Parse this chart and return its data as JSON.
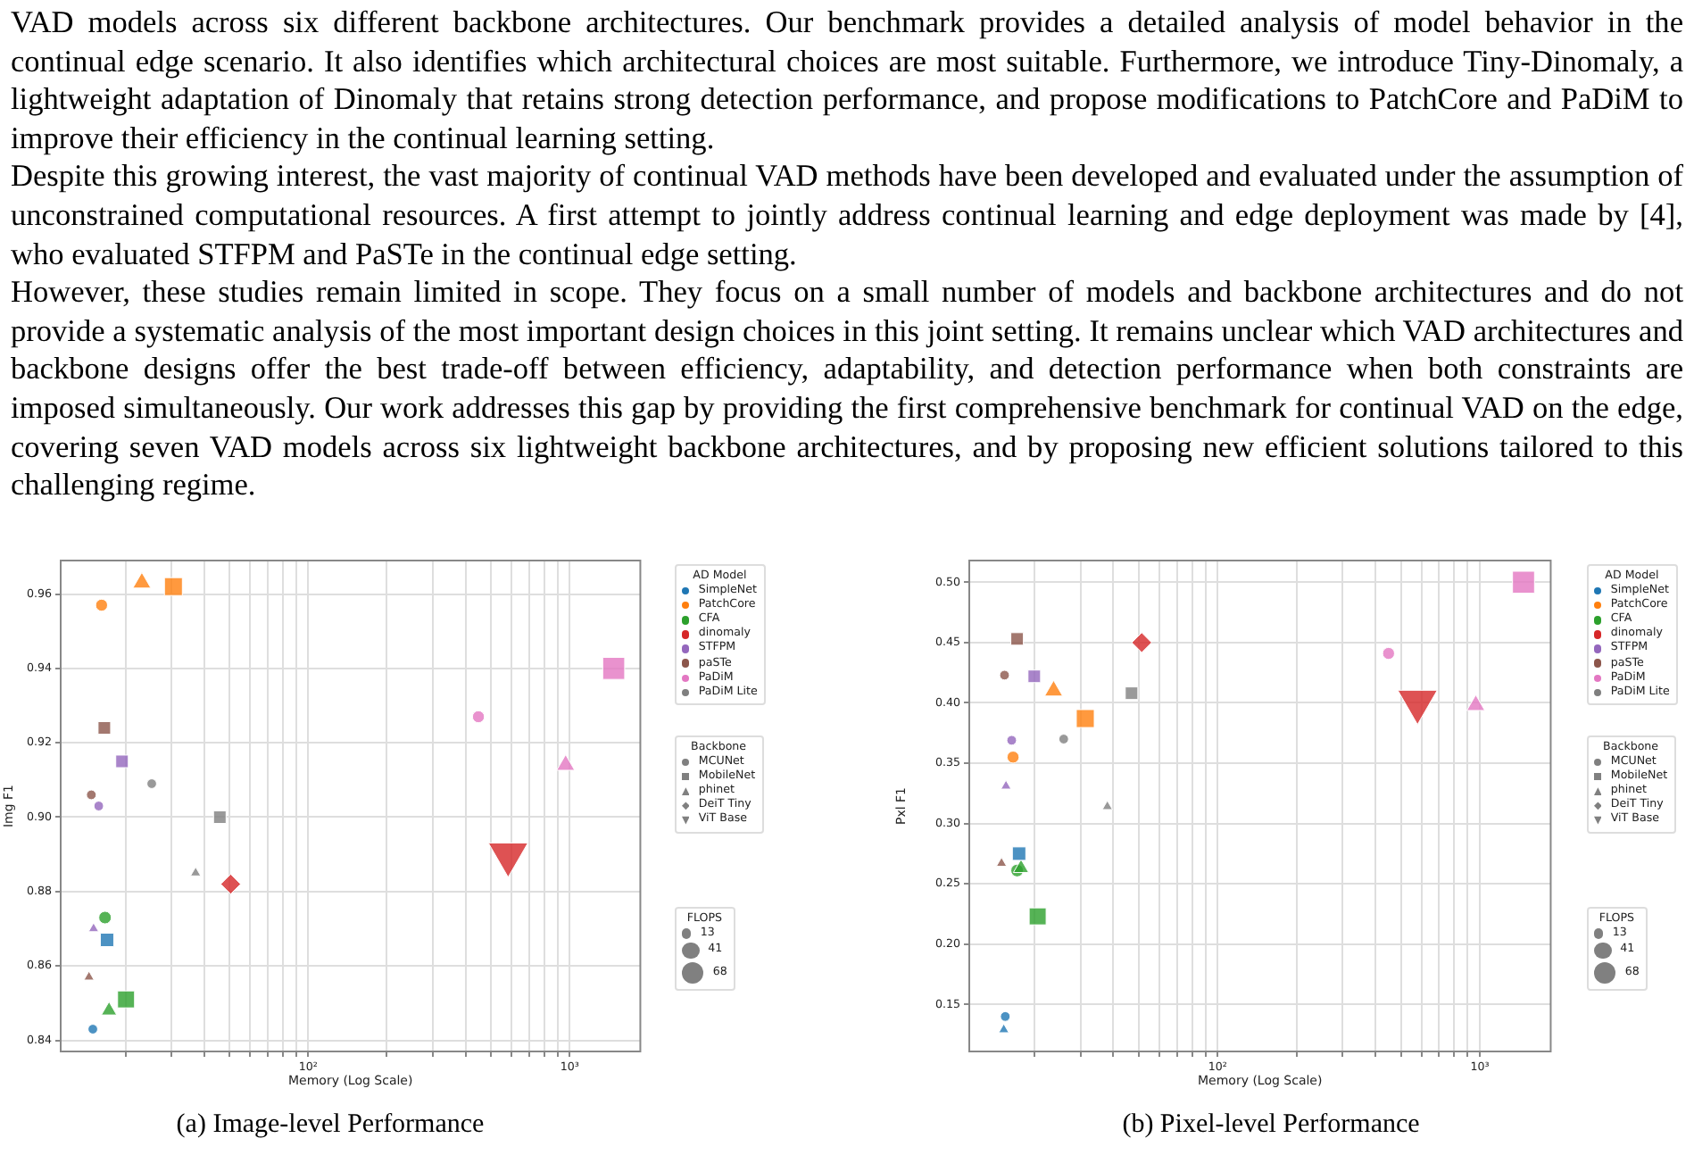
{
  "chart_data": [
    {
      "type": "bubble",
      "xlabel": "Memory (Log Scale)",
      "ylabel": "Img F1",
      "log": "x",
      "grid": true,
      "legend": "right",
      "legend_title": [
        "AD Model",
        "Backbone",
        "FLOPS"
      ],
      "size_legend": [
        13,
        41,
        68
      ],
      "xlim": [
        11.3,
        1865
      ],
      "xticks": [
        {
          "value": 20,
          "label": null
        },
        {
          "value": 30,
          "label": null
        },
        {
          "value": 40,
          "label": null
        },
        {
          "value": 50,
          "label": null
        },
        {
          "value": 60,
          "label": null
        },
        {
          "value": 70,
          "label": null
        },
        {
          "value": 80,
          "label": null
        },
        {
          "value": 90,
          "label": null
        },
        {
          "value": 100,
          "label": "10²"
        },
        {
          "value": 200,
          "label": null
        },
        {
          "value": 300,
          "label": null
        },
        {
          "value": 400,
          "label": null
        },
        {
          "value": 500,
          "label": null
        },
        {
          "value": 600,
          "label": null
        },
        {
          "value": 700,
          "label": null
        },
        {
          "value": 800,
          "label": null
        },
        {
          "value": 900,
          "label": null
        },
        {
          "value": 1000,
          "label": "10³"
        }
      ],
      "ylim": [
        0.837,
        0.969
      ],
      "yticks": [
        {
          "value": 0.84,
          "label": "0.84"
        },
        {
          "value": 0.86,
          "label": "0.86"
        },
        {
          "value": 0.88,
          "label": "0.88"
        },
        {
          "value": 0.9,
          "label": "0.90"
        },
        {
          "value": 0.92,
          "label": "0.92"
        },
        {
          "value": 0.94,
          "label": "0.94"
        },
        {
          "value": 0.96,
          "label": "0.96"
        }
      ],
      "annotations": [
        "VAD models across six different backbone architectures. Our benchmark provides a detailed analysis of model behavior in the continual edge scenario. It also identifies which architectural choices are most suitable. Furthermore, we introduce Tiny-Dinomaly, a lightweight adaptation of Dinomaly that retains strong detection performance, and propose modifications to PatchCore and PaDiM to improve their efficiency in the continual learning setting.",
        "Despite this growing interest, the vast majority of continual VAD methods have been developed and evaluated under the assumption of unconstrained computational resources. A first attempt to jointly address continual learning and edge deployment was made by [4], who evaluated STFPM and PaSTe in the continual edge setting.",
        "However, these studies remain limited in scope. They focus on a small number of models and backbone architectures and do not provide a systematic analysis of the most important design choices in this joint setting. It remains unclear which VAD architectures and backbone designs offer the best trade-off between efficiency, adaptability, and detection performance when both constraints are imposed simultaneously. Our work addresses this gap by providing the first comprehensive benchmark for continual VAD on the edge, covering seven VAD models across six lightweight backbone architectures, and by proposing new efficient solutions tailored to this challenging regime.",
        "(a) Image-level Performance"
      ],
      "series": [
        {
          "name": "SimpleNet",
          "color": "#1f77b4",
          "x": [
            15.0,
            17.0
          ],
          "values": [
            0.843,
            0.867
          ],
          "sizes": [
            13,
            32
          ],
          "marker": [
            "circle",
            "square"
          ]
        },
        {
          "name": "PatchCore",
          "color": "#ff7f0e",
          "x": [
            16.2,
            30.5,
            23.1
          ],
          "values": [
            0.957,
            0.962,
            0.963
          ],
          "sizes": [
            20,
            57,
            25
          ],
          "marker": [
            "circle",
            "square",
            "triangle"
          ]
        },
        {
          "name": "CFA",
          "color": "#2ca02c",
          "x": [
            16.7,
            20.1,
            17.3
          ],
          "values": [
            0.873,
            0.851,
            0.848
          ],
          "sizes": [
            22,
            51,
            18
          ],
          "marker": [
            "circle",
            "square",
            "triangle"
          ]
        },
        {
          "name": "dinomaly",
          "color": "#d62728",
          "x": [
            50.5,
            582
          ],
          "values": [
            0.882,
            0.89
          ],
          "sizes": [
            35,
            120
          ],
          "marker": [
            "diamond",
            "triangle_down"
          ]
        },
        {
          "name": "STFPM",
          "color": "#9467bd",
          "x": [
            15.8,
            19.4,
            15.1
          ],
          "values": [
            0.903,
            0.915,
            0.87
          ],
          "sizes": [
            13,
            28,
            8
          ],
          "marker": [
            "circle",
            "square",
            "triangle"
          ]
        },
        {
          "name": "paSTe",
          "color": "#8c564b",
          "x": [
            14.8,
            16.6,
            14.5
          ],
          "values": [
            0.906,
            0.924,
            0.857
          ],
          "sizes": [
            13,
            28,
            8
          ],
          "marker": [
            "circle",
            "square",
            "triangle"
          ]
        },
        {
          "name": "PaDiM",
          "color": "#e377c2",
          "x": [
            448,
            1475,
            966
          ],
          "values": [
            0.927,
            0.94,
            0.914
          ],
          "sizes": [
            20,
            86,
            25
          ],
          "marker": [
            "circle",
            "square",
            "triangle"
          ]
        },
        {
          "name": "PaDiM Lite",
          "color": "#7f7f7f",
          "x": [
            25.2,
            45.9,
            37.1
          ],
          "values": [
            0.909,
            0.9,
            0.885
          ],
          "sizes": [
            13,
            28,
            8
          ],
          "marker": [
            "circle",
            "square",
            "triangle"
          ]
        },
        {
          "name": "MCUNet",
          "color": "#808080",
          "marker": "circle"
        },
        {
          "name": "MobileNet",
          "color": "#808080",
          "marker": "square"
        },
        {
          "name": "phinet",
          "color": "#808080",
          "marker": "triangle"
        },
        {
          "name": "DeiT Tiny",
          "color": "#808080",
          "marker": "diamond"
        },
        {
          "name": "ViT Base",
          "color": "#808080",
          "marker": "triangle_down"
        }
      ]
    },
    {
      "type": "bubble",
      "xlabel": "Memory (Log Scale)",
      "ylabel": "Pxl F1",
      "log": "x",
      "grid": true,
      "legend": "right",
      "legend_title": [
        "AD Model",
        "Backbone",
        "FLOPS"
      ],
      "size_legend": [
        13,
        41,
        68
      ],
      "xlim": [
        11.3,
        1865
      ],
      "xticks": [
        {
          "value": 20,
          "label": null
        },
        {
          "value": 30,
          "label": null
        },
        {
          "value": 40,
          "label": null
        },
        {
          "value": 50,
          "label": null
        },
        {
          "value": 60,
          "label": null
        },
        {
          "value": 70,
          "label": null
        },
        {
          "value": 80,
          "label": null
        },
        {
          "value": 90,
          "label": null
        },
        {
          "value": 100,
          "label": "10²"
        },
        {
          "value": 200,
          "label": null
        },
        {
          "value": 300,
          "label": null
        },
        {
          "value": 400,
          "label": null
        },
        {
          "value": 500,
          "label": null
        },
        {
          "value": 600,
          "label": null
        },
        {
          "value": 700,
          "label": null
        },
        {
          "value": 800,
          "label": null
        },
        {
          "value": 900,
          "label": null
        },
        {
          "value": 1000,
          "label": "10³"
        }
      ],
      "ylim": [
        0.111,
        0.518
      ],
      "yticks": [
        {
          "value": 0.15,
          "label": "0.15"
        },
        {
          "value": 0.2,
          "label": "0.20"
        },
        {
          "value": 0.25,
          "label": "0.25"
        },
        {
          "value": 0.3,
          "label": "0.30"
        },
        {
          "value": 0.35,
          "label": "0.35"
        },
        {
          "value": 0.4,
          "label": "0.40"
        },
        {
          "value": 0.45,
          "label": "0.45"
        },
        {
          "value": 0.5,
          "label": "0.50"
        }
      ],
      "annotations": [
        "(b) Pixel-level Performance"
      ],
      "series": [
        {
          "name": "SimpleNet",
          "color": "#1f77b4",
          "x": [
            15.5,
            17.5,
            15.3
          ],
          "values": [
            0.14,
            0.275,
            0.129
          ],
          "sizes": [
            13,
            32,
            8
          ],
          "marker": [
            "circle",
            "square",
            "triangle"
          ]
        },
        {
          "name": "PatchCore",
          "color": "#ff7f0e",
          "x": [
            16.6,
            31.3,
            23.7
          ],
          "values": [
            0.355,
            0.387,
            0.41
          ],
          "sizes": [
            20,
            57,
            25
          ],
          "marker": [
            "circle",
            "square",
            "triangle"
          ]
        },
        {
          "name": "CFA",
          "color": "#2ca02c",
          "x": [
            17.2,
            20.6,
            17.8
          ],
          "values": [
            0.261,
            0.223,
            0.263
          ],
          "sizes": [
            22,
            51,
            18
          ],
          "marker": [
            "circle",
            "square",
            "triangle"
          ]
        },
        {
          "name": "dinomaly",
          "color": "#d62728",
          "x": [
            51.4,
            579
          ],
          "values": [
            0.45,
            0.401
          ],
          "sizes": [
            35,
            120
          ],
          "marker": [
            "diamond",
            "triangle_down"
          ]
        },
        {
          "name": "STFPM",
          "color": "#9467bd",
          "x": [
            16.4,
            20.0,
            15.6
          ],
          "values": [
            0.369,
            0.422,
            0.331
          ],
          "sizes": [
            13,
            28,
            8
          ],
          "marker": [
            "circle",
            "square",
            "triangle"
          ]
        },
        {
          "name": "paSTe",
          "color": "#8c564b",
          "x": [
            15.4,
            17.2,
            15.0
          ],
          "values": [
            0.423,
            0.453,
            0.267
          ],
          "sizes": [
            13,
            28,
            8
          ],
          "marker": [
            "circle",
            "square",
            "triangle"
          ]
        },
        {
          "name": "PaDiM",
          "color": "#e377c2",
          "x": [
            449,
            1469,
            966
          ],
          "values": [
            0.441,
            0.5,
            0.398
          ],
          "sizes": [
            20,
            86,
            25
          ],
          "marker": [
            "circle",
            "square",
            "triangle"
          ]
        },
        {
          "name": "PaDiM Lite",
          "color": "#7f7f7f",
          "x": [
            25.9,
            47.0,
            38.0
          ],
          "values": [
            0.37,
            0.408,
            0.314
          ],
          "sizes": [
            13,
            28,
            8
          ],
          "marker": [
            "circle",
            "square",
            "triangle"
          ]
        },
        {
          "name": "MCUNet",
          "color": "#808080",
          "marker": "circle"
        },
        {
          "name": "MobileNet",
          "color": "#808080",
          "marker": "square"
        },
        {
          "name": "phinet",
          "color": "#808080",
          "marker": "triangle"
        },
        {
          "name": "DeiT Tiny",
          "color": "#808080",
          "marker": "diamond"
        },
        {
          "name": "ViT Base",
          "color": "#808080",
          "marker": "triangle_down"
        }
      ]
    }
  ]
}
